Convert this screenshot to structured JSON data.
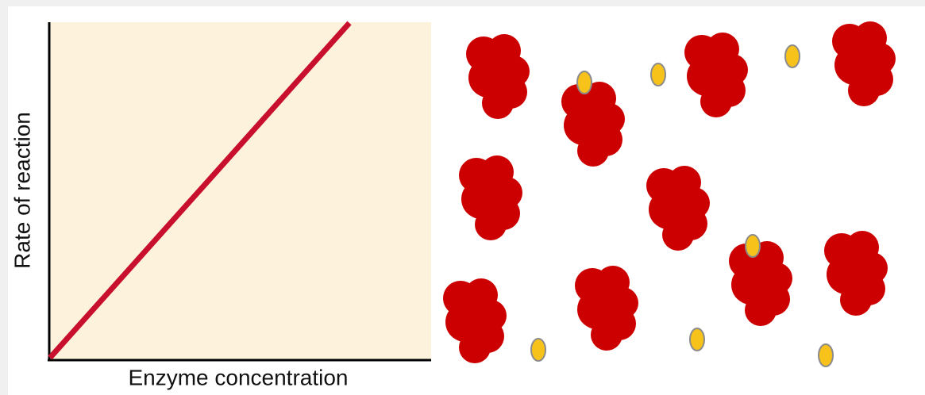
{
  "axes": {
    "x_label": "Enzyme concentration",
    "y_label": "Rate of reaction"
  }
}
